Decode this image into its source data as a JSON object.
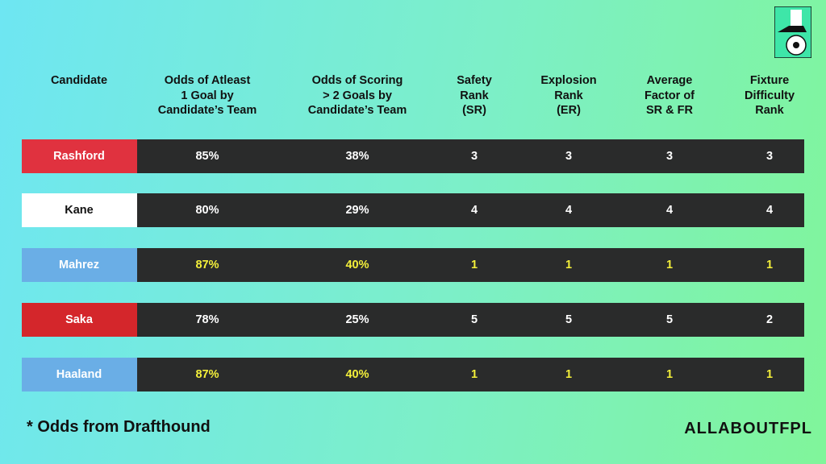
{
  "table": {
    "headers": [
      [
        "Candidate"
      ],
      [
        "Odds of Atleast",
        "1 Goal by",
        "Candidate’s Team"
      ],
      [
        "Odds of Scoring",
        "> 2 Goals by",
        "Candidate’s Team"
      ],
      [
        "Safety",
        "Rank",
        "(SR)"
      ],
      [
        "Explosion",
        "Rank",
        "(ER)"
      ],
      [
        "Average",
        "Factor of",
        "SR & FR"
      ],
      [
        "Fixture",
        "Difficulty",
        "Rank"
      ]
    ],
    "rows": [
      {
        "cells": [
          "Rashford",
          "85%",
          "38%",
          "3",
          "3",
          "3",
          "3"
        ],
        "color": "#e0323f",
        "name_color": "#ffffff",
        "text_color": "#ffffff"
      },
      {
        "cells": [
          "Kane",
          "80%",
          "29%",
          "4",
          "4",
          "4",
          "4"
        ],
        "color": "#ffffff",
        "name_color": "#111111",
        "text_color": "#ffffff"
      },
      {
        "cells": [
          "Mahrez",
          "87%",
          "40%",
          "1",
          "1",
          "1",
          "1"
        ],
        "color": "#6aaee6",
        "name_color": "#ffffff",
        "text_color": "#f4f03a"
      },
      {
        "cells": [
          "Saka",
          "78%",
          "25%",
          "5",
          "5",
          "5",
          "2"
        ],
        "color": "#d4262b",
        "name_color": "#ffffff",
        "text_color": "#ffffff"
      },
      {
        "cells": [
          "Haaland",
          "87%",
          "40%",
          "1",
          "1",
          "1",
          "1"
        ],
        "color": "#6aaee6",
        "name_color": "#ffffff",
        "text_color": "#f4f03a"
      }
    ]
  },
  "footnote": "*  Odds from Drafthound",
  "brand": "ALLABOUTFPL"
}
